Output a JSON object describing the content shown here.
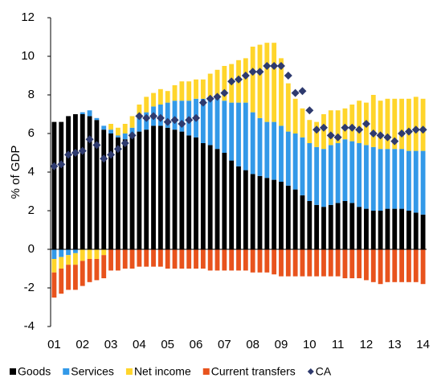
{
  "chart_data": {
    "type": "bar",
    "stacked": true,
    "y_label": "% of GDP",
    "categories": [
      "01",
      null,
      null,
      null,
      "02",
      null,
      null,
      null,
      "03",
      null,
      null,
      null,
      "04",
      null,
      null,
      null,
      "05",
      null,
      null,
      null,
      "06",
      null,
      null,
      null,
      "07",
      null,
      null,
      null,
      "08",
      null,
      null,
      null,
      "09",
      null,
      null,
      null,
      "10",
      null,
      null,
      null,
      "11",
      null,
      null,
      null,
      "12",
      null,
      null,
      null,
      "13",
      null,
      null,
      null,
      "14"
    ],
    "series": [
      {
        "name": "Goods",
        "color": "#000000",
        "values": [
          6.6,
          6.6,
          6.9,
          7.0,
          7.0,
          6.9,
          6.7,
          6.2,
          6.0,
          5.8,
          5.7,
          5.9,
          6.1,
          6.2,
          6.4,
          6.4,
          6.3,
          6.2,
          6.1,
          5.9,
          5.8,
          5.5,
          5.4,
          5.2,
          5.0,
          4.6,
          4.3,
          4.1,
          3.9,
          3.8,
          3.7,
          3.6,
          3.5,
          3.3,
          3.1,
          2.8,
          2.5,
          2.3,
          2.2,
          2.3,
          2.4,
          2.5,
          2.4,
          2.2,
          2.1,
          2.0,
          2.0,
          2.1,
          2.1,
          2.1,
          2.0,
          1.9,
          1.8
        ]
      },
      {
        "name": "Services",
        "color": "#3399e8",
        "values": [
          -0.5,
          -0.4,
          -0.3,
          -0.2,
          0.1,
          0.3,
          0.1,
          0.2,
          0.2,
          0.1,
          0.3,
          0.4,
          0.7,
          0.9,
          1.0,
          1.1,
          1.3,
          1.5,
          1.6,
          1.8,
          2.0,
          2.3,
          2.5,
          2.6,
          2.7,
          3.0,
          3.3,
          3.5,
          3.2,
          3.0,
          2.9,
          3.0,
          2.9,
          2.8,
          2.9,
          3.0,
          3.0,
          3.0,
          3.0,
          3.1,
          3.1,
          3.2,
          3.2,
          3.3,
          3.3,
          3.3,
          3.2,
          3.1,
          3.1,
          3.1,
          3.1,
          3.2,
          3.3
        ]
      },
      {
        "name": "Net income",
        "color": "#ffd52b",
        "values": [
          -0.7,
          -0.6,
          -0.5,
          -0.6,
          -0.6,
          -0.5,
          -0.5,
          -0.3,
          0.3,
          0.4,
          0.5,
          0.6,
          0.7,
          0.8,
          0.7,
          0.8,
          0.6,
          0.8,
          1.0,
          1.0,
          1.0,
          1.0,
          1.2,
          1.5,
          1.8,
          2.0,
          2.2,
          2.3,
          3.4,
          3.8,
          4.1,
          4.1,
          3.5,
          2.5,
          1.8,
          1.5,
          1.2,
          1.3,
          1.8,
          1.8,
          1.7,
          1.6,
          1.9,
          2.2,
          2.2,
          2.7,
          2.5,
          2.6,
          2.6,
          2.6,
          2.7,
          2.8,
          2.7
        ]
      },
      {
        "name": "Current transfers",
        "color": "#e8531d",
        "values": [
          -1.3,
          -1.3,
          -1.3,
          -1.3,
          -1.3,
          -1.2,
          -1.1,
          -1.2,
          -1.1,
          -1.1,
          -1.0,
          -1.0,
          -0.9,
          -0.9,
          -0.9,
          -0.9,
          -1.0,
          -1.0,
          -1.0,
          -1.0,
          -1.0,
          -1.0,
          -1.1,
          -1.1,
          -1.1,
          -1.1,
          -1.1,
          -1.1,
          -1.2,
          -1.2,
          -1.2,
          -1.3,
          -1.4,
          -1.4,
          -1.4,
          -1.4,
          -1.4,
          -1.4,
          -1.4,
          -1.4,
          -1.4,
          -1.5,
          -1.5,
          -1.5,
          -1.6,
          -1.7,
          -1.8,
          -1.7,
          -1.7,
          -1.7,
          -1.7,
          -1.7,
          -1.8
        ]
      },
      {
        "name": "CA",
        "color": "#2e3a6e",
        "kind": "marker",
        "values": [
          4.3,
          4.4,
          4.9,
          5.0,
          5.1,
          5.7,
          5.4,
          4.7,
          4.9,
          5.2,
          5.5,
          5.9,
          6.9,
          6.8,
          6.9,
          6.8,
          6.6,
          6.7,
          6.5,
          6.7,
          6.8,
          7.6,
          7.8,
          7.9,
          8.1,
          8.7,
          8.8,
          9.0,
          9.2,
          9.2,
          9.5,
          9.5,
          9.5,
          9.0,
          8.1,
          8.2,
          7.2,
          6.2,
          6.3,
          5.9,
          5.8,
          6.3,
          6.3,
          6.2,
          6.5,
          6.0,
          5.9,
          5.8,
          5.6,
          6.0,
          6.1,
          6.2,
          6.2
        ]
      }
    ],
    "ylim": [
      -4,
      12
    ],
    "yticks": [
      -4,
      -2,
      0,
      2,
      4,
      6,
      8,
      10,
      12
    ],
    "legend": "bottom"
  }
}
